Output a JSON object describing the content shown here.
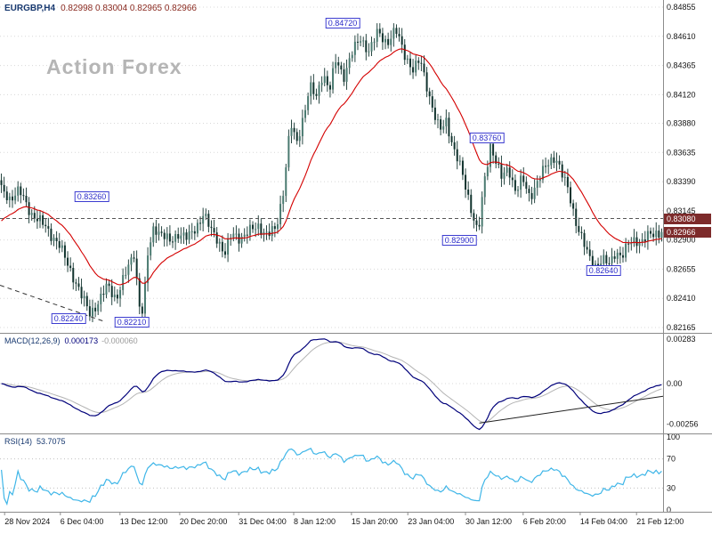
{
  "window": {
    "watermark": "Action Forex"
  },
  "header": {
    "symbol": "EURGBP,H4",
    "ohlc": "0.82998 0.83004 0.82965 0.82966"
  },
  "colors": {
    "candle": "#11332e",
    "candle_up": "#4a7a70",
    "ma": "#d40000",
    "macd": "#00007a",
    "signal": "#b4b4b4",
    "rsi": "#3fb6e8",
    "grid": "#d8d8d8",
    "separator": "#8c8c8c",
    "annotation_blue": "#2a2ac8",
    "price_tag_bg": "#7d2b2b"
  },
  "chart_data": [
    {
      "type": "candlestick",
      "symbol": "EURGBP",
      "timeframe": "H4",
      "open": 0.82998,
      "high": 0.83004,
      "low": 0.82965,
      "close": 0.82966,
      "num_candles": 240,
      "ylim": [
        0.8212,
        0.84915
      ],
      "y_ticks": [
        0.84855,
        0.8461,
        0.84365,
        0.8412,
        0.8388,
        0.83635,
        0.8339,
        0.83145,
        0.829,
        0.82655,
        0.8241,
        0.82165
      ],
      "ma_left_value": 0.8303,
      "level_line": {
        "price": 0.8308,
        "label": "0.83080"
      },
      "current_price": {
        "price": 0.82966,
        "label": "0.82966"
      },
      "trendline": [
        [
          0.0,
          0.8252
        ],
        [
          0.155,
          0.8222
        ]
      ],
      "annotations": [
        {
          "text": "0.84720",
          "t": 0.517,
          "price": 0.8472
        },
        {
          "text": "0.83760",
          "t": 0.734,
          "price": 0.8376
        },
        {
          "text": "0.83260",
          "t": 0.138,
          "price": 0.8326
        },
        {
          "text": "0.82900",
          "t": 0.693,
          "price": 0.829
        },
        {
          "text": "0.82640",
          "t": 0.91,
          "price": 0.8264
        },
        {
          "text": "0.82240",
          "t": 0.103,
          "price": 0.8224
        },
        {
          "text": "0.82210",
          "t": 0.199,
          "price": 0.8221
        }
      ],
      "price_path": [
        [
          0.0,
          0.8332
        ],
        [
          0.013,
          0.8325
        ],
        [
          0.027,
          0.8331
        ],
        [
          0.047,
          0.8311
        ],
        [
          0.067,
          0.8301
        ],
        [
          0.087,
          0.8286
        ],
        [
          0.107,
          0.8262
        ],
        [
          0.121,
          0.8243
        ],
        [
          0.134,
          0.8229
        ],
        [
          0.148,
          0.8238
        ],
        [
          0.161,
          0.8252
        ],
        [
          0.174,
          0.8241
        ],
        [
          0.188,
          0.8261
        ],
        [
          0.201,
          0.828
        ],
        [
          0.209,
          0.8235
        ],
        [
          0.215,
          0.8228
        ],
        [
          0.221,
          0.8275
        ],
        [
          0.231,
          0.8302
        ],
        [
          0.242,
          0.8295
        ],
        [
          0.255,
          0.8288
        ],
        [
          0.268,
          0.8296
        ],
        [
          0.282,
          0.8291
        ],
        [
          0.295,
          0.8301
        ],
        [
          0.306,
          0.8312
        ],
        [
          0.317,
          0.8298
        ],
        [
          0.328,
          0.8291
        ],
        [
          0.338,
          0.8278
        ],
        [
          0.349,
          0.8295
        ],
        [
          0.362,
          0.8292
        ],
        [
          0.376,
          0.8297
        ],
        [
          0.389,
          0.8302
        ],
        [
          0.403,
          0.8294
        ],
        [
          0.416,
          0.8299
        ],
        [
          0.427,
          0.8332
        ],
        [
          0.438,
          0.8388
        ],
        [
          0.447,
          0.837
        ],
        [
          0.458,
          0.8396
        ],
        [
          0.467,
          0.8419
        ],
        [
          0.477,
          0.8409
        ],
        [
          0.487,
          0.8431
        ],
        [
          0.497,
          0.8416
        ],
        [
          0.507,
          0.8441
        ],
        [
          0.518,
          0.8427
        ],
        [
          0.53,
          0.8446
        ],
        [
          0.544,
          0.8459
        ],
        [
          0.557,
          0.8449
        ],
        [
          0.57,
          0.8464
        ],
        [
          0.584,
          0.8456
        ],
        [
          0.597,
          0.8466
        ],
        [
          0.611,
          0.8446
        ],
        [
          0.624,
          0.8432
        ],
        [
          0.634,
          0.8441
        ],
        [
          0.644,
          0.8421
        ],
        [
          0.655,
          0.8396
        ],
        [
          0.664,
          0.8381
        ],
        [
          0.674,
          0.8391
        ],
        [
          0.685,
          0.8366
        ],
        [
          0.695,
          0.8351
        ],
        [
          0.705,
          0.8331
        ],
        [
          0.714,
          0.8311
        ],
        [
          0.722,
          0.8294
        ],
        [
          0.732,
          0.8341
        ],
        [
          0.741,
          0.8371
        ],
        [
          0.749,
          0.8356
        ],
        [
          0.758,
          0.8341
        ],
        [
          0.768,
          0.8351
        ],
        [
          0.779,
          0.8331
        ],
        [
          0.789,
          0.8341
        ],
        [
          0.8,
          0.8326
        ],
        [
          0.809,
          0.8336
        ],
        [
          0.819,
          0.8346
        ],
        [
          0.83,
          0.8356
        ],
        [
          0.839,
          0.8361
        ],
        [
          0.848,
          0.8346
        ],
        [
          0.859,
          0.8331
        ],
        [
          0.87,
          0.8306
        ],
        [
          0.879,
          0.8291
        ],
        [
          0.889,
          0.8276
        ],
        [
          0.899,
          0.8269
        ],
        [
          0.91,
          0.8273
        ],
        [
          0.921,
          0.8269
        ],
        [
          0.93,
          0.8281
        ],
        [
          0.94,
          0.8276
        ],
        [
          0.95,
          0.8286
        ],
        [
          0.96,
          0.8291
        ],
        [
          0.969,
          0.8288
        ],
        [
          0.98,
          0.8293
        ],
        [
          0.991,
          0.8296
        ],
        [
          1.0,
          0.82966
        ]
      ],
      "x_labels": [
        {
          "t": 0.007,
          "text": "28 Nov 2024"
        },
        {
          "t": 0.091,
          "text": "6 Dec 04:00"
        },
        {
          "t": 0.181,
          "text": "13 Dec 12:00"
        },
        {
          "t": 0.271,
          "text": "20 Dec 20:00"
        },
        {
          "t": 0.36,
          "text": "31 Dec 04:00"
        },
        {
          "t": 0.443,
          "text": "8 Jan 12:00"
        },
        {
          "t": 0.53,
          "text": "15 Jan 20:00"
        },
        {
          "t": 0.615,
          "text": "23 Jan 04:00"
        },
        {
          "t": 0.702,
          "text": "30 Jan 12:00"
        },
        {
          "t": 0.789,
          "text": "6 Feb 20:00"
        },
        {
          "t": 0.875,
          "text": "14 Feb 04:00"
        },
        {
          "t": 0.96,
          "text": "21 Feb 12:00"
        }
      ]
    },
    {
      "type": "line",
      "name": "MACD",
      "label": "MACD(12,26,9)",
      "value_main": "0.000173",
      "value_signal": "-0.000060",
      "params": {
        "fast": 12,
        "slow": 26,
        "signal": 9
      },
      "ylim": [
        -0.0031,
        0.0031
      ],
      "y_ticks": [
        {
          "v": 0.00283,
          "text": "0.00283"
        },
        {
          "v": 0.0,
          "text": "0.00"
        },
        {
          "v": -0.00256,
          "text": "-0.00256"
        }
      ],
      "trendline": [
        [
          0.723,
          -0.0025
        ],
        [
          1.0,
          -0.0008
        ]
      ]
    },
    {
      "type": "line",
      "name": "RSI",
      "label": "RSI(14)",
      "value": "53.7075",
      "period": 14,
      "levels": [
        70,
        30
      ],
      "ylim": [
        0,
        100
      ],
      "y_ticks": [
        {
          "v": 100,
          "text": "100"
        },
        {
          "v": 70,
          "text": "70"
        },
        {
          "v": 30,
          "text": "30"
        },
        {
          "v": 0,
          "text": "0"
        }
      ]
    }
  ]
}
